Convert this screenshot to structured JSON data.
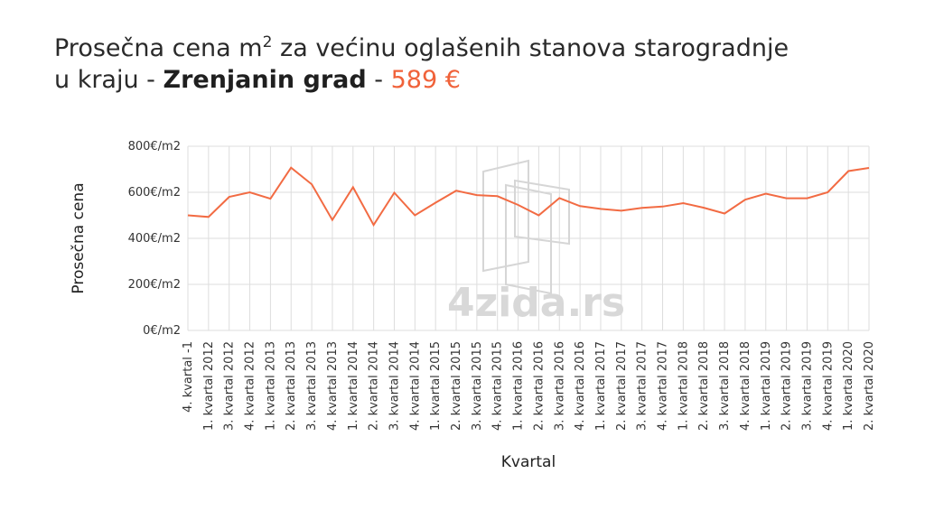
{
  "title": {
    "line1_prefix": "Prosečna cena m",
    "sup": "2",
    "line1_suffix": " za većinu oglašenih stanova starogradnje",
    "line2_prefix": "u kraju - ",
    "location": "Zrenjanin grad",
    "sep": " - ",
    "price": "589 €"
  },
  "watermark": "4zida.rs",
  "colors": {
    "line": "#f26b43",
    "price": "#f0623a",
    "grid": "#dddddd"
  },
  "chart_data": {
    "type": "line",
    "xlabel": "Kvartal",
    "ylabel": "Prosečna cena",
    "ylim": [
      0,
      800
    ],
    "yticks": [
      "0€/m2",
      "200€/m2",
      "400€/m2",
      "600€/m2",
      "800€/m2"
    ],
    "ytick_values": [
      0,
      200,
      400,
      600,
      800
    ],
    "grid": true,
    "categories": [
      "4. kvartal -1",
      "1. kvartal 2012",
      "3. kvartal 2012",
      "4. kvartal 2012",
      "1. kvartal 2013",
      "2. kvartal 2013",
      "3. kvartal 2013",
      "4. kvartal 2013",
      "1. kvartal 2014",
      "2. kvartal 2014",
      "3. kvartal 2014",
      "4. kvartal 2014",
      "1. kvartal 2015",
      "2. kvartal 2015",
      "3. kvartal 2015",
      "4. kvartal 2015",
      "1. kvartal 2016",
      "2. kvartal 2016",
      "3. kvartal 2016",
      "4. kvartal 2016",
      "1. kvartal 2017",
      "2. kvartal 2017",
      "3. kvartal 2017",
      "4. kvartal 2017",
      "1. kvartal 2018",
      "2. kvartal 2018",
      "3. kvartal 2018",
      "4. kvartal 2018",
      "1. kvartal 2019",
      "2. kvartal 2019",
      "3. kvartal 2019",
      "4. kvartal 2019",
      "1. kvartal 2020",
      "2. kvartal 2020"
    ],
    "series": [
      {
        "values": [
          500,
          493,
          580,
          600,
          572,
          707,
          635,
          480,
          622,
          458,
          598,
          500,
          555,
          607,
          588,
          583,
          545,
          500,
          575,
          540,
          528,
          520,
          532,
          538,
          553,
          533,
          508,
          568,
          594,
          574,
          574,
          600,
          692,
          706
        ]
      }
    ]
  }
}
